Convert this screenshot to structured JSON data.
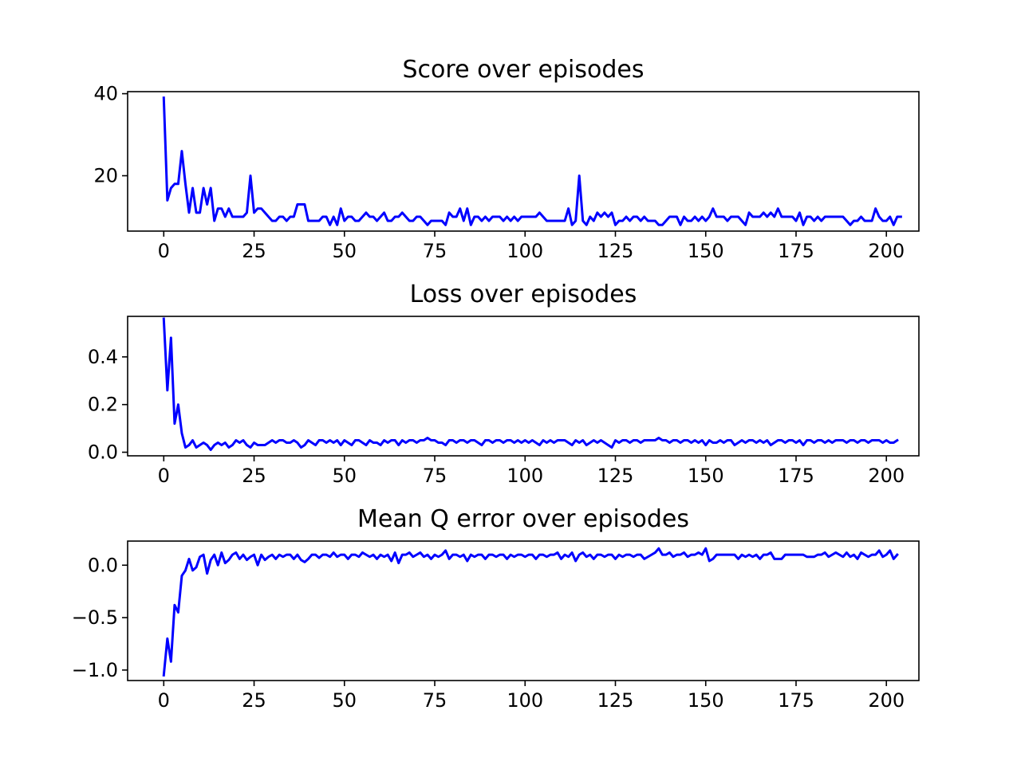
{
  "chart_data": [
    {
      "type": "line",
      "title": "Score over episodes",
      "xlabel": "",
      "ylabel": "",
      "xlim": [
        -10,
        209
      ],
      "ylim": [
        6.5,
        40.5
      ],
      "xticks": [
        0,
        25,
        50,
        75,
        100,
        125,
        150,
        175,
        200
      ],
      "xtick_labels": [
        "0",
        "25",
        "50",
        "75",
        "100",
        "125",
        "150",
        "175",
        "200"
      ],
      "yticks": [
        20,
        40
      ],
      "ytick_labels": [
        "20",
        "40"
      ],
      "grid": false,
      "color": "#0000ff",
      "series": [
        {
          "values": [
            39,
            14,
            17,
            18,
            18,
            26,
            18,
            11,
            17,
            11,
            11,
            17,
            13,
            17,
            9,
            12,
            12,
            10,
            12,
            10,
            10,
            10,
            10,
            11,
            20,
            11,
            12,
            12,
            11,
            10,
            9,
            9,
            10,
            10,
            9,
            10,
            10,
            13,
            13,
            13,
            9,
            9,
            9,
            9,
            10,
            10,
            8,
            10,
            8,
            12,
            9,
            10,
            10,
            9,
            9,
            10,
            11,
            10,
            10,
            9,
            10,
            11,
            9,
            9,
            10,
            10,
            11,
            10,
            9,
            9,
            10,
            10,
            9,
            8,
            9,
            9,
            9,
            9,
            8,
            11,
            10,
            10,
            12,
            9,
            12,
            8,
            10,
            10,
            9,
            10,
            9,
            10,
            10,
            10,
            9,
            10,
            9,
            10,
            9,
            10,
            10,
            10,
            10,
            10,
            11,
            10,
            9,
            9,
            9,
            9,
            9,
            9,
            12,
            8,
            9,
            20,
            9,
            8,
            10,
            9,
            11,
            10,
            11,
            10,
            11,
            8,
            9,
            9,
            10,
            9,
            10,
            10,
            9,
            10,
            9,
            9,
            9,
            8,
            8,
            9,
            10,
            10,
            10,
            8,
            10,
            9,
            9,
            10,
            9,
            10,
            9,
            10,
            12,
            10,
            10,
            10,
            9,
            10,
            10,
            10,
            9,
            8,
            11,
            10,
            10,
            10,
            11,
            10,
            11,
            10,
            12,
            10,
            10,
            10,
            10,
            9,
            11,
            8,
            10,
            10,
            9,
            10,
            9,
            10,
            10,
            10,
            10,
            10,
            10,
            9,
            8,
            9,
            9,
            10,
            9,
            9,
            9,
            12,
            10,
            9,
            9,
            10,
            8,
            10,
            10
          ]
        }
      ]
    },
    {
      "type": "line",
      "title": "Loss over episodes",
      "xlabel": "",
      "ylabel": "",
      "xlim": [
        -10,
        209
      ],
      "ylim": [
        -0.015,
        0.57
      ],
      "xticks": [
        0,
        25,
        50,
        75,
        100,
        125,
        150,
        175,
        200
      ],
      "xtick_labels": [
        "0",
        "25",
        "50",
        "75",
        "100",
        "125",
        "150",
        "175",
        "200"
      ],
      "yticks": [
        0.0,
        0.2,
        0.4
      ],
      "ytick_labels": [
        "0.0",
        "0.2",
        "0.4"
      ],
      "grid": false,
      "color": "#0000ff",
      "series": [
        {
          "values": [
            0.56,
            0.26,
            0.48,
            0.12,
            0.2,
            0.08,
            0.02,
            0.03,
            0.05,
            0.02,
            0.03,
            0.04,
            0.03,
            0.01,
            0.03,
            0.04,
            0.03,
            0.04,
            0.02,
            0.03,
            0.05,
            0.04,
            0.05,
            0.03,
            0.02,
            0.04,
            0.03,
            0.03,
            0.03,
            0.04,
            0.05,
            0.04,
            0.05,
            0.05,
            0.04,
            0.04,
            0.05,
            0.04,
            0.02,
            0.03,
            0.05,
            0.04,
            0.03,
            0.05,
            0.05,
            0.04,
            0.05,
            0.04,
            0.05,
            0.03,
            0.05,
            0.04,
            0.03,
            0.05,
            0.05,
            0.04,
            0.03,
            0.05,
            0.04,
            0.04,
            0.03,
            0.05,
            0.04,
            0.05,
            0.05,
            0.03,
            0.05,
            0.04,
            0.05,
            0.05,
            0.04,
            0.05,
            0.05,
            0.06,
            0.05,
            0.05,
            0.04,
            0.04,
            0.03,
            0.05,
            0.05,
            0.04,
            0.05,
            0.05,
            0.04,
            0.05,
            0.05,
            0.04,
            0.03,
            0.05,
            0.05,
            0.04,
            0.05,
            0.05,
            0.04,
            0.05,
            0.05,
            0.04,
            0.05,
            0.04,
            0.05,
            0.04,
            0.05,
            0.04,
            0.03,
            0.05,
            0.04,
            0.05,
            0.04,
            0.05,
            0.05,
            0.05,
            0.04,
            0.03,
            0.05,
            0.04,
            0.05,
            0.03,
            0.04,
            0.05,
            0.04,
            0.05,
            0.04,
            0.03,
            0.02,
            0.05,
            0.04,
            0.05,
            0.05,
            0.04,
            0.05,
            0.05,
            0.04,
            0.05,
            0.05,
            0.05,
            0.05,
            0.06,
            0.05,
            0.05,
            0.04,
            0.05,
            0.05,
            0.04,
            0.05,
            0.05,
            0.04,
            0.05,
            0.04,
            0.05,
            0.03,
            0.05,
            0.04,
            0.04,
            0.05,
            0.04,
            0.05,
            0.05,
            0.03,
            0.04,
            0.05,
            0.04,
            0.05,
            0.05,
            0.04,
            0.05,
            0.04,
            0.05,
            0.03,
            0.04,
            0.05,
            0.05,
            0.04,
            0.05,
            0.05,
            0.04,
            0.05,
            0.03,
            0.05,
            0.05,
            0.04,
            0.05,
            0.05,
            0.04,
            0.05,
            0.04,
            0.05,
            0.05,
            0.05,
            0.04,
            0.05,
            0.05,
            0.04,
            0.05,
            0.05,
            0.04,
            0.05,
            0.05,
            0.05,
            0.04,
            0.05,
            0.04,
            0.04,
            0.05
          ]
        }
      ]
    },
    {
      "type": "line",
      "title": "Mean Q error over episodes",
      "xlabel": "",
      "ylabel": "",
      "xlim": [
        -10,
        209
      ],
      "ylim": [
        -1.1,
        0.23
      ],
      "xticks": [
        0,
        25,
        50,
        75,
        100,
        125,
        150,
        175,
        200
      ],
      "xtick_labels": [
        "0",
        "25",
        "50",
        "75",
        "100",
        "125",
        "150",
        "175",
        "200"
      ],
      "yticks": [
        -1.0,
        -0.5,
        0.0
      ],
      "ytick_labels": [
        "−1.0",
        "−0.5",
        "0.0"
      ],
      "grid": false,
      "color": "#0000ff",
      "series": [
        {
          "values": [
            -1.05,
            -0.7,
            -0.92,
            -0.38,
            -0.45,
            -0.1,
            -0.05,
            0.06,
            -0.05,
            -0.02,
            0.08,
            0.1,
            -0.08,
            0.05,
            0.1,
            0.0,
            0.12,
            0.02,
            0.05,
            0.1,
            0.12,
            0.06,
            0.1,
            0.05,
            0.08,
            0.1,
            0.0,
            0.1,
            0.05,
            0.08,
            0.1,
            0.06,
            0.1,
            0.08,
            0.1,
            0.1,
            0.06,
            0.1,
            0.05,
            0.03,
            0.06,
            0.1,
            0.1,
            0.07,
            0.1,
            0.1,
            0.08,
            0.12,
            0.08,
            0.1,
            0.1,
            0.06,
            0.1,
            0.1,
            0.08,
            0.12,
            0.1,
            0.08,
            0.1,
            0.06,
            0.1,
            0.08,
            0.1,
            0.04,
            0.12,
            0.02,
            0.1,
            0.1,
            0.12,
            0.08,
            0.1,
            0.12,
            0.08,
            0.1,
            0.06,
            0.1,
            0.08,
            0.1,
            0.14,
            0.06,
            0.1,
            0.1,
            0.08,
            0.1,
            0.04,
            0.1,
            0.08,
            0.1,
            0.1,
            0.06,
            0.1,
            0.1,
            0.08,
            0.1,
            0.1,
            0.06,
            0.1,
            0.08,
            0.1,
            0.1,
            0.08,
            0.1,
            0.1,
            0.06,
            0.1,
            0.1,
            0.08,
            0.1,
            0.1,
            0.12,
            0.06,
            0.1,
            0.08,
            0.12,
            0.04,
            0.1,
            0.12,
            0.08,
            0.1,
            0.06,
            0.1,
            0.1,
            0.08,
            0.1,
            0.1,
            0.06,
            0.1,
            0.08,
            0.1,
            0.1,
            0.08,
            0.1,
            0.1,
            0.06,
            0.08,
            0.1,
            0.12,
            0.16,
            0.1,
            0.1,
            0.12,
            0.08,
            0.1,
            0.1,
            0.12,
            0.08,
            0.1,
            0.1,
            0.12,
            0.1,
            0.16,
            0.04,
            0.06,
            0.1,
            0.1,
            0.1,
            0.1,
            0.1,
            0.1,
            0.06,
            0.1,
            0.08,
            0.1,
            0.08,
            0.1,
            0.06,
            0.1,
            0.1,
            0.12,
            0.06,
            0.06,
            0.06,
            0.1,
            0.1,
            0.1,
            0.1,
            0.1,
            0.1,
            0.08,
            0.08,
            0.08,
            0.1,
            0.1,
            0.12,
            0.08,
            0.1,
            0.12,
            0.1,
            0.08,
            0.12,
            0.08,
            0.1,
            0.06,
            0.12,
            0.1,
            0.08,
            0.1,
            0.1,
            0.14,
            0.08,
            0.1,
            0.14,
            0.06,
            0.1
          ]
        }
      ]
    }
  ]
}
